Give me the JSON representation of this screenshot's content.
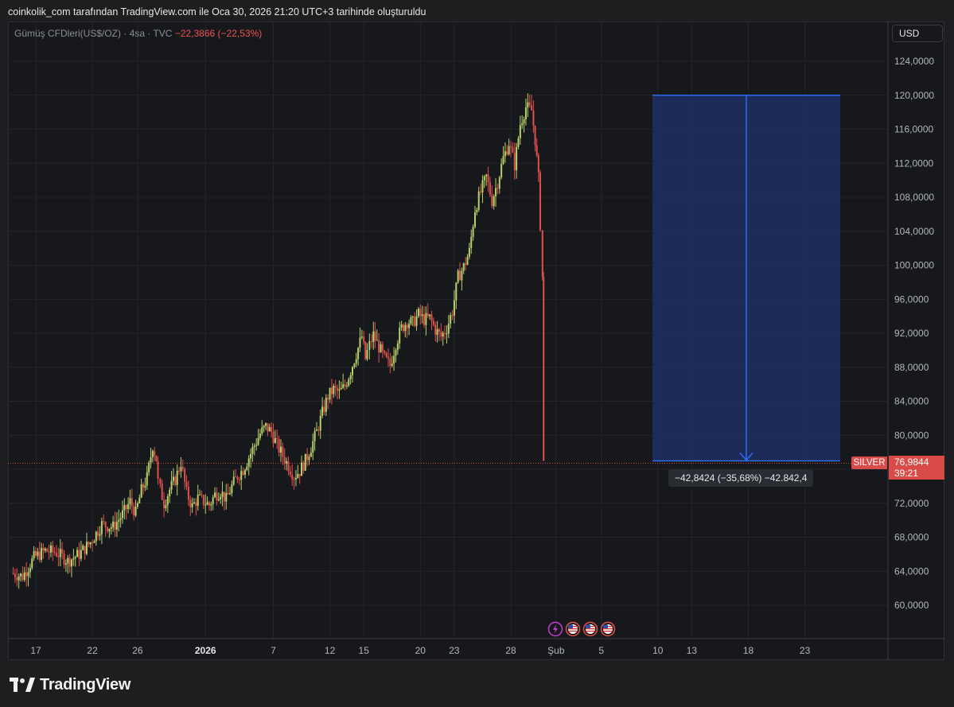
{
  "header": {
    "caption": "coinkolik_com tarafından TradingView.com ile Oca 30, 2026 21:20 UTC+3 tarihinde oluşturuldu"
  },
  "legend": {
    "symbol": "Gümüş CFDleri(US$/OZ) · 4sa · TVC",
    "change": "−22,3866 (−22,53%)"
  },
  "price_axis": {
    "currency": "USD"
  },
  "last_price": {
    "symbol_tag": "SILVER",
    "price": "76,9844",
    "countdown": "39:21"
  },
  "measure": {
    "label": "−42,8424 (−35,68%) −42.842,4",
    "from_price": 120.0,
    "to_price": 76.9844
  },
  "brand": {
    "name": "TradingView"
  },
  "colors": {
    "up": "#b7d16b",
    "down": "#e0504d",
    "measure_line": "#2f6bf5",
    "measure_fill": "#1d2f63",
    "price_line": "#d84b48"
  },
  "events": [
    "lightning-event-icon",
    "us-flag-icon",
    "us-flag-icon",
    "us-flag-icon"
  ],
  "chart_data": {
    "type": "candlestick",
    "title": "",
    "ylim": [
      56,
      127
    ],
    "y_ticks": [
      60,
      64,
      68,
      72,
      76,
      80,
      84,
      88,
      92,
      96,
      100,
      104,
      108,
      112,
      116,
      120,
      124
    ],
    "y_tick_labels": [
      "60,0000",
      "64,0000",
      "68,0000",
      "72,0000",
      "76,0000",
      "80,0000",
      "84,0000",
      "88,0000",
      "92,0000",
      "96,0000",
      "100,0000",
      "104,0000",
      "108,0000",
      "112,0000",
      "116,0000",
      "120,0000",
      "124,0000"
    ],
    "x_ticks": [
      {
        "label": "17",
        "day": -14
      },
      {
        "label": "22",
        "day": -9
      },
      {
        "label": "26",
        "day": -5
      },
      {
        "label": "2026",
        "day": 1
      },
      {
        "label": "7",
        "day": 7
      },
      {
        "label": "12",
        "day": 12
      },
      {
        "label": "15",
        "day": 15
      },
      {
        "label": "20",
        "day": 20
      },
      {
        "label": "23",
        "day": 23
      },
      {
        "label": "28",
        "day": 28
      },
      {
        "label": "Şub",
        "day": 32
      },
      {
        "label": "5",
        "day": 36
      },
      {
        "label": "10",
        "day": 41
      },
      {
        "label": "13",
        "day": 44
      },
      {
        "label": "18",
        "day": 49
      },
      {
        "label": "23",
        "day": 54
      }
    ],
    "series_close": [
      {
        "day": -16.0,
        "close": 63.8
      },
      {
        "day": -15.0,
        "close": 63.4
      },
      {
        "day": -14.0,
        "close": 65.6
      },
      {
        "day": -13.0,
        "close": 66.4
      },
      {
        "day": -12.0,
        "close": 66.2
      },
      {
        "day": -11.0,
        "close": 65.2
      },
      {
        "day": -10.0,
        "close": 66.0
      },
      {
        "day": -9.0,
        "close": 67.4
      },
      {
        "day": -8.0,
        "close": 69.5
      },
      {
        "day": -7.0,
        "close": 69.2
      },
      {
        "day": -6.0,
        "close": 71.0
      },
      {
        "day": -5.5,
        "close": 72.2
      },
      {
        "day": -5.0,
        "close": 70.8
      },
      {
        "day": -4.5,
        "close": 73.5
      },
      {
        "day": -4.0,
        "close": 75.0
      },
      {
        "day": -3.5,
        "close": 78.8
      },
      {
        "day": -3.2,
        "close": 77.2
      },
      {
        "day": -3.0,
        "close": 74.5
      },
      {
        "day": -2.5,
        "close": 72.0
      },
      {
        "day": -2.0,
        "close": 73.6
      },
      {
        "day": -1.5,
        "close": 74.8
      },
      {
        "day": -1.0,
        "close": 76.8
      },
      {
        "day": -0.5,
        "close": 73.2
      },
      {
        "day": 0.0,
        "close": 71.6
      },
      {
        "day": 0.5,
        "close": 72.6
      },
      {
        "day": 1.0,
        "close": 72.2
      },
      {
        "day": 1.5,
        "close": 71.8
      },
      {
        "day": 2.0,
        "close": 73.0
      },
      {
        "day": 2.5,
        "close": 73.4
      },
      {
        "day": 3.0,
        "close": 72.4
      },
      {
        "day": 3.5,
        "close": 74.0
      },
      {
        "day": 4.0,
        "close": 75.2
      },
      {
        "day": 4.5,
        "close": 76.0
      },
      {
        "day": 5.0,
        "close": 77.4
      },
      {
        "day": 5.5,
        "close": 78.8
      },
      {
        "day": 6.0,
        "close": 80.2
      },
      {
        "day": 6.5,
        "close": 81.0
      },
      {
        "day": 7.0,
        "close": 80.4
      },
      {
        "day": 7.5,
        "close": 78.8
      },
      {
        "day": 8.0,
        "close": 77.6
      },
      {
        "day": 8.5,
        "close": 76.4
      },
      {
        "day": 9.0,
        "close": 75.2
      },
      {
        "day": 9.5,
        "close": 75.8
      },
      {
        "day": 10.0,
        "close": 77.0
      },
      {
        "day": 10.5,
        "close": 78.6
      },
      {
        "day": 11.0,
        "close": 80.4
      },
      {
        "day": 11.5,
        "close": 82.6
      },
      {
        "day": 12.0,
        "close": 84.6
      },
      {
        "day": 12.5,
        "close": 85.4
      },
      {
        "day": 13.0,
        "close": 85.0
      },
      {
        "day": 13.5,
        "close": 85.8
      },
      {
        "day": 14.0,
        "close": 87.6
      },
      {
        "day": 14.5,
        "close": 89.6
      },
      {
        "day": 15.0,
        "close": 91.6
      },
      {
        "day": 15.3,
        "close": 89.0
      },
      {
        "day": 15.7,
        "close": 90.6
      },
      {
        "day": 16.0,
        "close": 91.8
      },
      {
        "day": 16.5,
        "close": 90.4
      },
      {
        "day": 17.0,
        "close": 89.0
      },
      {
        "day": 17.5,
        "close": 88.2
      },
      {
        "day": 18.0,
        "close": 90.8
      },
      {
        "day": 18.5,
        "close": 92.6
      },
      {
        "day": 19.0,
        "close": 93.4
      },
      {
        "day": 19.5,
        "close": 93.2
      },
      {
        "day": 20.0,
        "close": 94.2
      },
      {
        "day": 20.5,
        "close": 93.6
      },
      {
        "day": 21.0,
        "close": 93.8
      },
      {
        "day": 21.5,
        "close": 92.4
      },
      {
        "day": 22.0,
        "close": 91.6
      },
      {
        "day": 22.5,
        "close": 92.6
      },
      {
        "day": 23.0,
        "close": 94.6
      },
      {
        "day": 23.5,
        "close": 98.6
      },
      {
        "day": 24.0,
        "close": 99.8
      },
      {
        "day": 24.5,
        "close": 101.6
      },
      {
        "day": 25.0,
        "close": 106.6
      },
      {
        "day": 25.5,
        "close": 108.6
      },
      {
        "day": 26.0,
        "close": 110.4
      },
      {
        "day": 26.5,
        "close": 107.6
      },
      {
        "day": 27.0,
        "close": 109.8
      },
      {
        "day": 27.5,
        "close": 112.6
      },
      {
        "day": 28.0,
        "close": 114.4
      },
      {
        "day": 28.5,
        "close": 111.8
      },
      {
        "day": 29.0,
        "close": 116.6
      },
      {
        "day": 29.5,
        "close": 118.6
      },
      {
        "day": 30.0,
        "close": 118.2
      },
      {
        "day": 30.3,
        "close": 114.8
      },
      {
        "day": 30.6,
        "close": 110.2
      },
      {
        "day": 30.8,
        "close": 104.8
      },
      {
        "day": 30.9,
        "close": 98.6
      },
      {
        "day": 31.0,
        "close": 76.9844
      }
    ]
  }
}
